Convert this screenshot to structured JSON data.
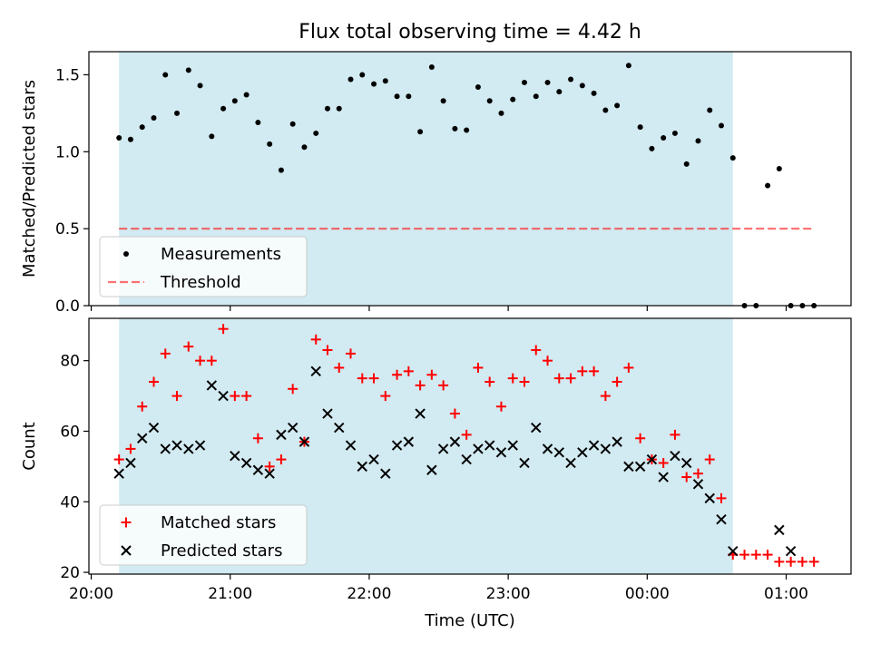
{
  "figure": {
    "title": "Flux total observing time = 4.42 h",
    "xlabel": "Time (UTC)"
  },
  "colors": {
    "shade": "#add8e6",
    "measurement": "#000000",
    "threshold": "#ff0000",
    "matched": "#ff0000",
    "predicted": "#000000"
  },
  "chart_data": [
    {
      "type": "scatter",
      "panel": "top",
      "xlabel": "",
      "ylabel": "Matched/Predicted stars",
      "xlim": [
        "19:59",
        "01:28"
      ],
      "ylim": [
        0,
        1.65
      ],
      "yticks": [
        0.0,
        0.5,
        1.0,
        1.5
      ],
      "ytick_labels": [
        "0.0",
        "0.5",
        "1.0",
        "1.5"
      ],
      "shaded_span": [
        "20:12",
        "00:37"
      ],
      "legend": {
        "position": "lower-left",
        "entries": [
          "Measurements",
          "Threshold"
        ]
      },
      "threshold": {
        "name": "Threshold",
        "value": 0.5,
        "x_range": [
          "20:12",
          "01:12"
        ]
      },
      "series": [
        {
          "name": "Measurements",
          "marker": "dot",
          "points": [
            [
              "20:12",
              1.09
            ],
            [
              "20:17",
              1.08
            ],
            [
              "20:22",
              1.16
            ],
            [
              "20:27",
              1.22
            ],
            [
              "20:32",
              1.5
            ],
            [
              "20:37",
              1.25
            ],
            [
              "20:42",
              1.53
            ],
            [
              "20:47",
              1.43
            ],
            [
              "20:52",
              1.1
            ],
            [
              "20:57",
              1.28
            ],
            [
              "21:02",
              1.33
            ],
            [
              "21:07",
              1.37
            ],
            [
              "21:12",
              1.19
            ],
            [
              "21:17",
              1.05
            ],
            [
              "21:22",
              0.88
            ],
            [
              "21:27",
              1.18
            ],
            [
              "21:32",
              1.03
            ],
            [
              "21:37",
              1.12
            ],
            [
              "21:42",
              1.28
            ],
            [
              "21:47",
              1.28
            ],
            [
              "21:52",
              1.47
            ],
            [
              "21:57",
              1.5
            ],
            [
              "22:02",
              1.44
            ],
            [
              "22:07",
              1.46
            ],
            [
              "22:12",
              1.36
            ],
            [
              "22:17",
              1.36
            ],
            [
              "22:22",
              1.13
            ],
            [
              "22:27",
              1.55
            ],
            [
              "22:32",
              1.33
            ],
            [
              "22:37",
              1.15
            ],
            [
              "22:42",
              1.14
            ],
            [
              "22:47",
              1.42
            ],
            [
              "22:52",
              1.33
            ],
            [
              "22:57",
              1.25
            ],
            [
              "23:02",
              1.34
            ],
            [
              "23:07",
              1.45
            ],
            [
              "23:12",
              1.36
            ],
            [
              "23:17",
              1.45
            ],
            [
              "23:22",
              1.39
            ],
            [
              "23:27",
              1.47
            ],
            [
              "23:32",
              1.43
            ],
            [
              "23:37",
              1.38
            ],
            [
              "23:42",
              1.27
            ],
            [
              "23:47",
              1.3
            ],
            [
              "23:52",
              1.56
            ],
            [
              "23:57",
              1.16
            ],
            [
              "00:02",
              1.02
            ],
            [
              "00:07",
              1.09
            ],
            [
              "00:12",
              1.12
            ],
            [
              "00:17",
              0.92
            ],
            [
              "00:22",
              1.07
            ],
            [
              "00:27",
              1.27
            ],
            [
              "00:32",
              1.17
            ],
            [
              "00:37",
              0.96
            ],
            [
              "00:42",
              0.0
            ],
            [
              "00:47",
              0.0
            ],
            [
              "00:52",
              0.78
            ],
            [
              "00:57",
              0.89
            ],
            [
              "01:02",
              0.0
            ],
            [
              "01:07",
              0.0
            ],
            [
              "01:12",
              0.0
            ]
          ]
        }
      ]
    },
    {
      "type": "scatter",
      "panel": "bottom",
      "xlabel": "Time (UTC)",
      "ylabel": "Count",
      "xlim": [
        "19:59",
        "01:28"
      ],
      "ylim": [
        19.5,
        92
      ],
      "xticks": [
        "20:00",
        "21:00",
        "22:00",
        "23:00",
        "00:00",
        "01:00"
      ],
      "yticks": [
        20,
        40,
        60,
        80
      ],
      "ytick_labels": [
        "20",
        "40",
        "60",
        "80"
      ],
      "shaded_span": [
        "20:12",
        "00:37"
      ],
      "legend": {
        "position": "lower-left",
        "entries": [
          "Matched stars",
          "Predicted stars"
        ]
      },
      "series": [
        {
          "name": "Matched stars",
          "marker": "plus",
          "points": [
            [
              "20:12",
              52
            ],
            [
              "20:17",
              55
            ],
            [
              "20:22",
              67
            ],
            [
              "20:27",
              74
            ],
            [
              "20:32",
              82
            ],
            [
              "20:37",
              70
            ],
            [
              "20:42",
              84
            ],
            [
              "20:47",
              80
            ],
            [
              "20:52",
              80
            ],
            [
              "20:57",
              89
            ],
            [
              "21:02",
              70
            ],
            [
              "21:07",
              70
            ],
            [
              "21:12",
              58
            ],
            [
              "21:17",
              50
            ],
            [
              "21:22",
              52
            ],
            [
              "21:27",
              72
            ],
            [
              "21:32",
              57
            ],
            [
              "21:37",
              86
            ],
            [
              "21:42",
              83
            ],
            [
              "21:47",
              78
            ],
            [
              "21:52",
              82
            ],
            [
              "21:57",
              75
            ],
            [
              "22:02",
              75
            ],
            [
              "22:07",
              70
            ],
            [
              "22:12",
              76
            ],
            [
              "22:17",
              77
            ],
            [
              "22:22",
              73
            ],
            [
              "22:27",
              76
            ],
            [
              "22:32",
              73
            ],
            [
              "22:37",
              65
            ],
            [
              "22:42",
              59
            ],
            [
              "22:47",
              78
            ],
            [
              "22:52",
              74
            ],
            [
              "22:57",
              67
            ],
            [
              "23:02",
              75
            ],
            [
              "23:07",
              74
            ],
            [
              "23:12",
              83
            ],
            [
              "23:17",
              80
            ],
            [
              "23:22",
              75
            ],
            [
              "23:27",
              75
            ],
            [
              "23:32",
              77
            ],
            [
              "23:37",
              77
            ],
            [
              "23:42",
              70
            ],
            [
              "23:47",
              74
            ],
            [
              "23:52",
              78
            ],
            [
              "23:57",
              58
            ],
            [
              "00:02",
              52
            ],
            [
              "00:07",
              51
            ],
            [
              "00:12",
              59
            ],
            [
              "00:17",
              47
            ],
            [
              "00:22",
              48
            ],
            [
              "00:27",
              52
            ],
            [
              "00:32",
              41
            ],
            [
              "00:37",
              25
            ],
            [
              "00:42",
              25
            ],
            [
              "00:47",
              25
            ],
            [
              "00:52",
              25
            ],
            [
              "00:57",
              23
            ],
            [
              "01:02",
              23
            ],
            [
              "01:07",
              23
            ],
            [
              "01:12",
              23
            ]
          ]
        },
        {
          "name": "Predicted stars",
          "marker": "x",
          "points": [
            [
              "20:12",
              48
            ],
            [
              "20:17",
              51
            ],
            [
              "20:22",
              58
            ],
            [
              "20:27",
              61
            ],
            [
              "20:32",
              55
            ],
            [
              "20:37",
              56
            ],
            [
              "20:42",
              55
            ],
            [
              "20:47",
              56
            ],
            [
              "20:52",
              73
            ],
            [
              "20:57",
              70
            ],
            [
              "21:02",
              53
            ],
            [
              "21:07",
              51
            ],
            [
              "21:12",
              49
            ],
            [
              "21:17",
              48
            ],
            [
              "21:22",
              59
            ],
            [
              "21:27",
              61
            ],
            [
              "21:32",
              57
            ],
            [
              "21:37",
              77
            ],
            [
              "21:42",
              65
            ],
            [
              "21:47",
              61
            ],
            [
              "21:52",
              56
            ],
            [
              "21:57",
              50
            ],
            [
              "22:02",
              52
            ],
            [
              "22:07",
              48
            ],
            [
              "22:12",
              56
            ],
            [
              "22:17",
              57
            ],
            [
              "22:22",
              65
            ],
            [
              "22:27",
              49
            ],
            [
              "22:32",
              55
            ],
            [
              "22:37",
              57
            ],
            [
              "22:42",
              52
            ],
            [
              "22:47",
              55
            ],
            [
              "22:52",
              56
            ],
            [
              "22:57",
              54
            ],
            [
              "23:02",
              56
            ],
            [
              "23:07",
              51
            ],
            [
              "23:12",
              61
            ],
            [
              "23:17",
              55
            ],
            [
              "23:22",
              54
            ],
            [
              "23:27",
              51
            ],
            [
              "23:32",
              54
            ],
            [
              "23:37",
              56
            ],
            [
              "23:42",
              55
            ],
            [
              "23:47",
              57
            ],
            [
              "23:52",
              50
            ],
            [
              "23:57",
              50
            ],
            [
              "00:02",
              52
            ],
            [
              "00:07",
              47
            ],
            [
              "00:12",
              53
            ],
            [
              "00:17",
              51
            ],
            [
              "00:22",
              45
            ],
            [
              "00:27",
              41
            ],
            [
              "00:32",
              35
            ],
            [
              "00:37",
              26
            ],
            [
              "00:57",
              32
            ],
            [
              "01:02",
              26
            ]
          ]
        }
      ]
    }
  ]
}
